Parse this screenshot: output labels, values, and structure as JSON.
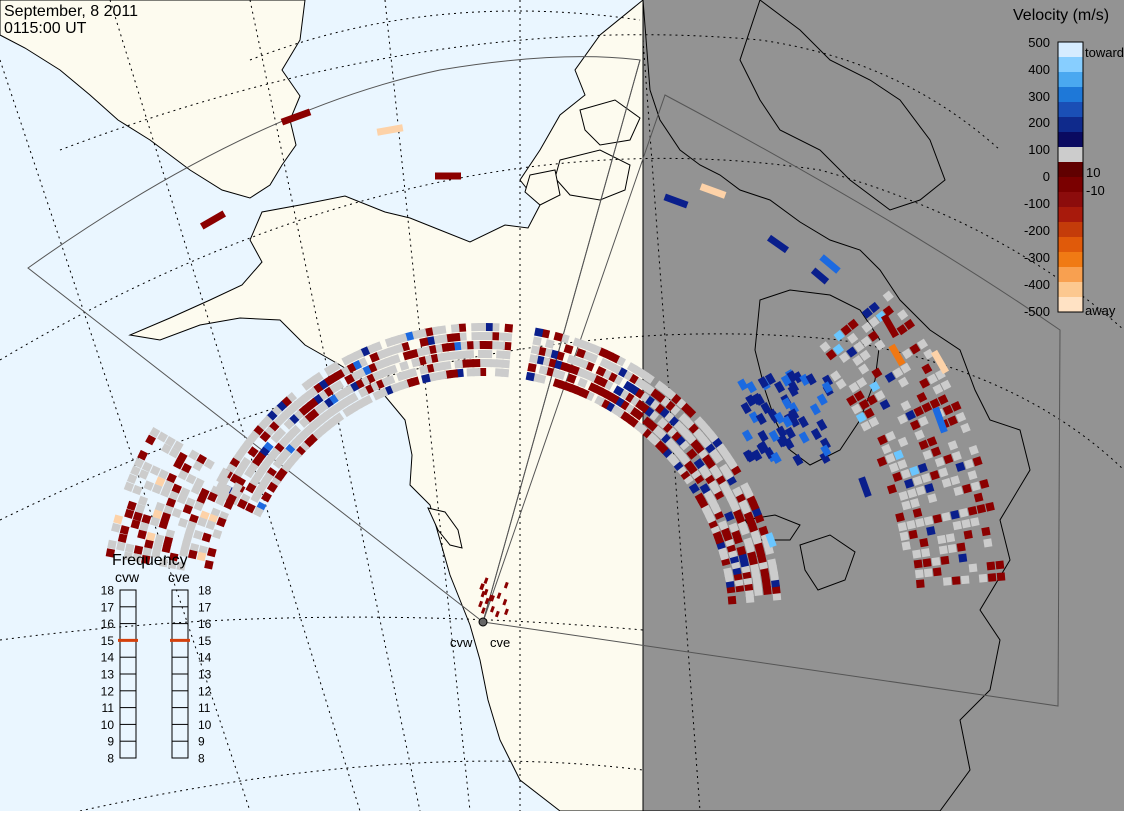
{
  "header": {
    "date": "September, 8 2011",
    "time": "0115:00 UT"
  },
  "colorbar": {
    "title": "Velocity (m/s)",
    "toward_label": "toward",
    "away_label": "away",
    "ticks": [
      "500",
      "400",
      "300",
      "200",
      "100",
      "10",
      "0",
      "-10",
      "-100",
      "-200",
      "-300",
      "-400",
      "-500"
    ],
    "colors": [
      "#d6ecff",
      "#87ceff",
      "#4aa8f0",
      "#1e78d8",
      "#1a4fb6",
      "#0f2a8c",
      "#0a0a60",
      "#cccccc",
      "#600000",
      "#7a0000",
      "#8c0c0c",
      "#a81a0c",
      "#c43c0a",
      "#e05a0a",
      "#f07a14",
      "#f8a050",
      "#fcc890",
      "#ffe2c4"
    ]
  },
  "radars": [
    {
      "id": "cvw",
      "label": "cvw"
    },
    {
      "id": "cve",
      "label": "cve"
    }
  ],
  "frequency": {
    "title": "Frequency",
    "ticks": [
      "18",
      "17",
      "16",
      "15",
      "14",
      "13",
      "12",
      "11",
      "10",
      "9",
      "8"
    ],
    "selected": [
      {
        "radar": "cvw",
        "value_mhz": 15
      },
      {
        "radar": "cve",
        "value_mhz": 15
      }
    ]
  },
  "map": {
    "ocean_color": "#eaf6ff",
    "land_color": "#fdfbef",
    "night_color": "#939393",
    "scatter_colors": {
      "ground": "#cccccc",
      "negative_weak": "#8b0000",
      "negative_strong": "#c22c0c",
      "positive_weak": "#0a1f8c",
      "positive_strong": "#1c6ae0",
      "positive_fast": "#6ac6ff",
      "away_fast": "#fdd2a8",
      "orange": "#f07814"
    }
  }
}
